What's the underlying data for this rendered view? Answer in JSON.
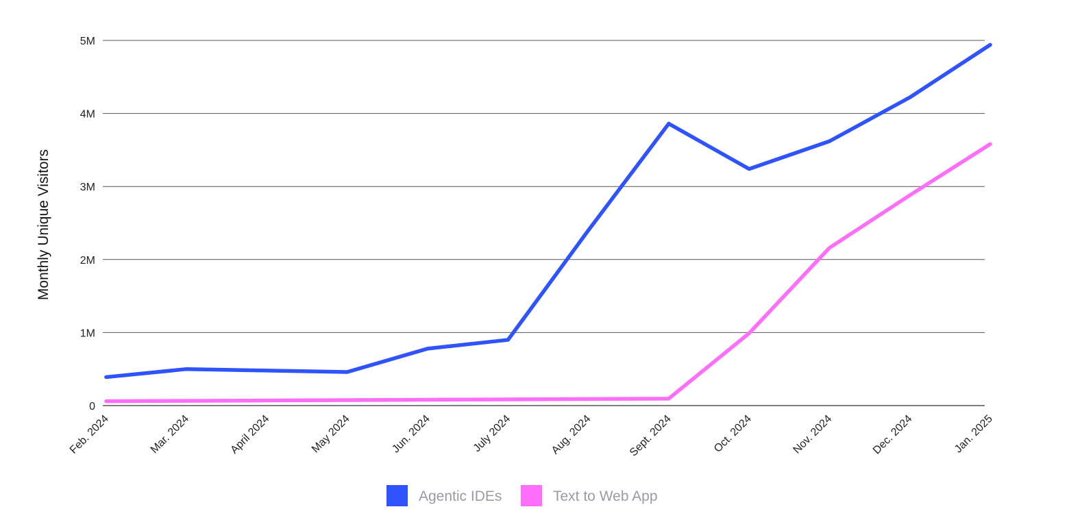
{
  "chart_data": {
    "type": "line",
    "title": "",
    "xlabel": "",
    "ylabel": "Monthly Unique Visitors",
    "categories": [
      "Feb. 2024",
      "Mar. 2024",
      "April 2024",
      "May 2024",
      "Jun. 2024",
      "July 2024",
      "Aug. 2024",
      "Sept. 2024",
      "Oct. 2024",
      "Nov. 2024",
      "Dec. 2024",
      "Jan. 2025"
    ],
    "ylim": [
      0,
      5000000
    ],
    "yticks": [
      {
        "value": 0,
        "label": "0"
      },
      {
        "value": 1000000,
        "label": "1M"
      },
      {
        "value": 2000000,
        "label": "2M"
      },
      {
        "value": 3000000,
        "label": "3M"
      },
      {
        "value": 4000000,
        "label": "4M"
      },
      {
        "value": 5000000,
        "label": "5M"
      }
    ],
    "grid": true,
    "legend_position": "bottom-center",
    "series": [
      {
        "name": "Agentic IDEs",
        "color": "#2f54ff",
        "values": [
          390000,
          500000,
          480000,
          460000,
          780000,
          900000,
          2400000,
          3860000,
          3240000,
          3620000,
          4220000,
          4940000
        ]
      },
      {
        "name": "Text to Web App",
        "color": "#ff6ef8",
        "values": [
          60000,
          65000,
          70000,
          75000,
          80000,
          85000,
          90000,
          95000,
          990000,
          2160000,
          2880000,
          3580000
        ]
      }
    ]
  }
}
